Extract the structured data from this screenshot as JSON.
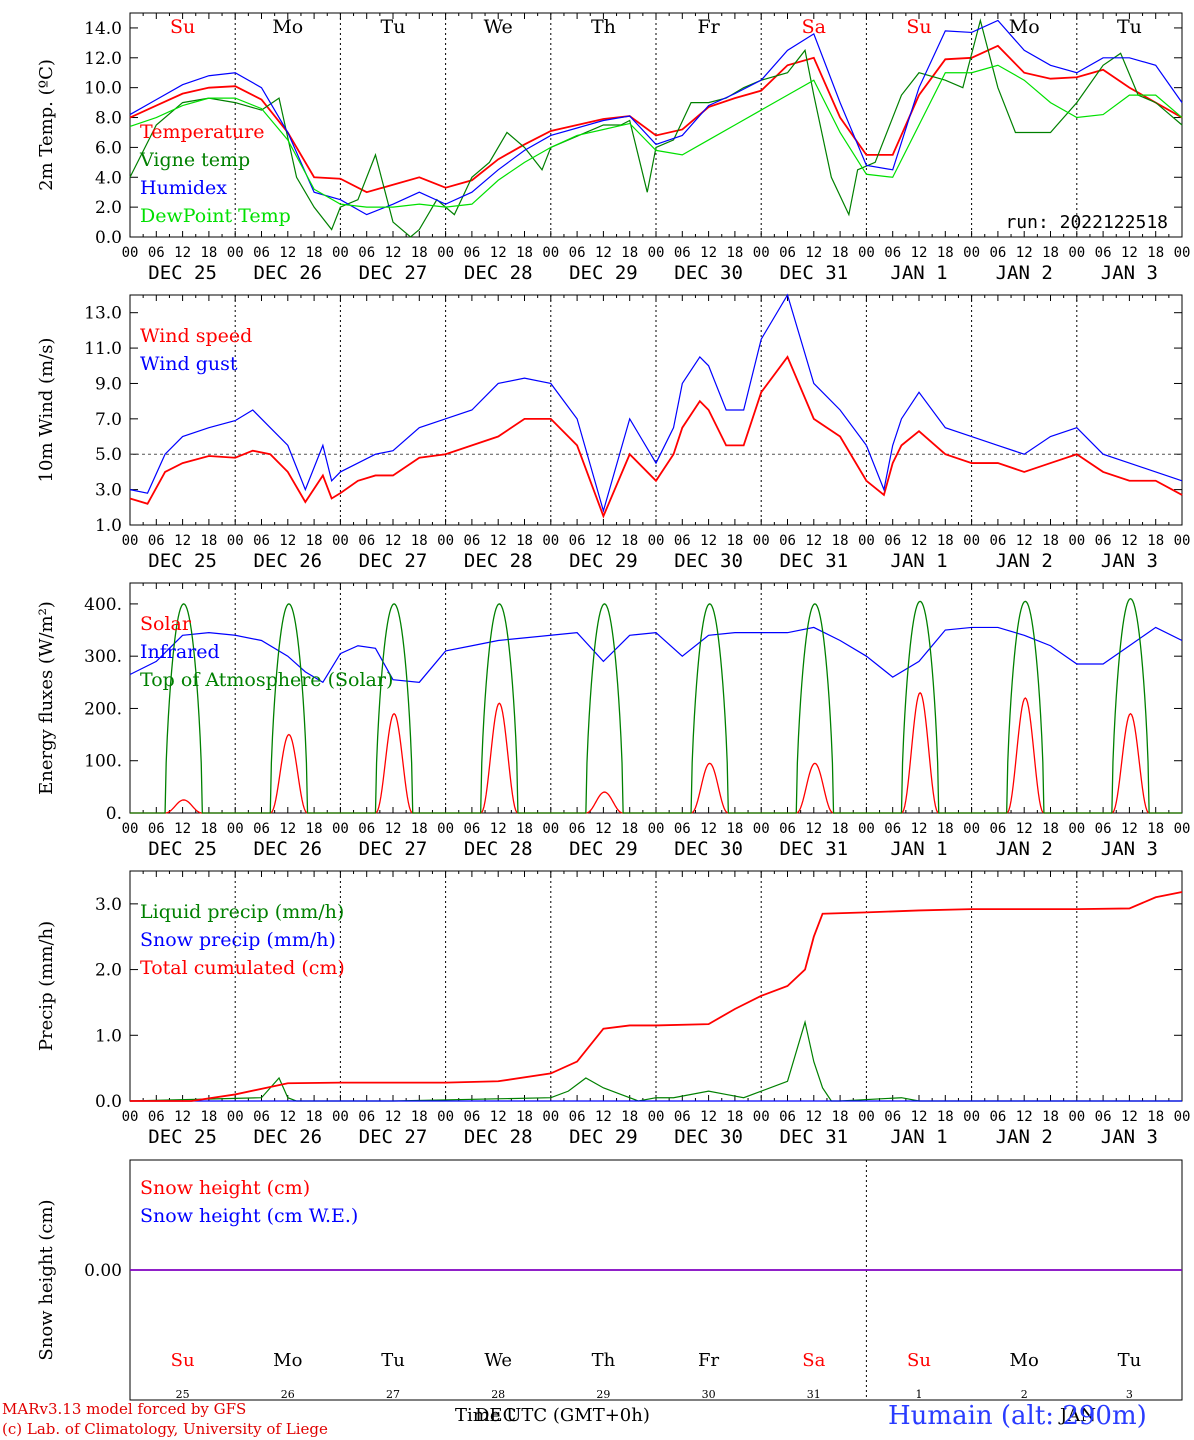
{
  "colors": {
    "red": "#ff0000",
    "green": "#008000",
    "blue": "#0000ff",
    "lightgreen": "#00e000",
    "purple": "#8000c0",
    "name_blue": "#3040ff"
  },
  "days_header": [
    "Su",
    "Mo",
    "Tu",
    "We",
    "Th",
    "Fr",
    "Sa",
    "Su",
    "Mo",
    "Tu"
  ],
  "weekend_days": [
    0,
    6,
    7
  ],
  "hour_labels": [
    "00",
    "06",
    "12",
    "18"
  ],
  "date_labels": [
    "DEC 25",
    "DEC 26",
    "DEC 27",
    "DEC 28",
    "DEC 29",
    "DEC 30",
    "DEC 31",
    "JAN  1",
    "JAN  2",
    "JAN  3"
  ],
  "day_numbers": [
    "25",
    "26",
    "27",
    "28",
    "29",
    "30",
    "31",
    "1",
    "2",
    "3"
  ],
  "run_label": "run: 2022122518",
  "footer": {
    "model": "MARv3.13 model forced by GFS",
    "lab": "(c) Lab. of Climatology, University of Liege",
    "xlabel": "Time UTC (GMT+0h)",
    "month_dec": "DEC",
    "month_jan": "JAN",
    "station": "Humain (alt: 290m)"
  },
  "chart_data": [
    {
      "type": "line",
      "ylabel": "2m Temp. (ºC)",
      "ylim": [
        0,
        15
      ],
      "yticks": [
        "0.0",
        "2.0",
        "4.0",
        "6.0",
        "8.0",
        "10.0",
        "12.0",
        "14.0"
      ],
      "x_unit": "hours since DEC 25 00 UTC",
      "series": [
        {
          "name": "Temperature",
          "color": "red",
          "x": [
            0,
            6,
            12,
            18,
            24,
            30,
            36,
            42,
            48,
            54,
            60,
            66,
            72,
            78,
            84,
            90,
            96,
            102,
            108,
            114,
            120,
            126,
            132,
            138,
            144,
            150,
            156,
            162,
            168,
            174,
            180,
            186,
            192,
            198,
            204,
            210,
            216,
            222,
            228,
            234,
            240
          ],
          "y": [
            8.0,
            8.8,
            9.6,
            10.0,
            10.1,
            9.2,
            7.0,
            4.0,
            3.9,
            3.0,
            3.5,
            4.0,
            3.3,
            3.8,
            5.2,
            6.2,
            7.1,
            7.5,
            7.9,
            8.1,
            6.8,
            7.2,
            8.7,
            9.3,
            9.8,
            11.5,
            12.0,
            8.0,
            5.5,
            5.5,
            9.5,
            11.9,
            12.0,
            12.8,
            11.0,
            10.6,
            10.7,
            11.2,
            10.0,
            9.0,
            8.0
          ]
        },
        {
          "name": "Vigne temp",
          "color": "green",
          "x": [
            0,
            6,
            12,
            18,
            24,
            30,
            34,
            38,
            42,
            46,
            48,
            52,
            56,
            60,
            64,
            66,
            70,
            74,
            78,
            82,
            86,
            90,
            94,
            96,
            100,
            104,
            108,
            112,
            114,
            118,
            120,
            124,
            128,
            132,
            136,
            140,
            144,
            150,
            154,
            156,
            160,
            164,
            166,
            170,
            174,
            176,
            180,
            186,
            190,
            194,
            198,
            202,
            206,
            210,
            216,
            222,
            226,
            230,
            234,
            240
          ],
          "y": [
            4.0,
            7.5,
            9.0,
            9.3,
            9.0,
            8.5,
            9.3,
            4.0,
            2.0,
            0.5,
            2.0,
            2.5,
            5.5,
            1.0,
            0.0,
            0.5,
            2.5,
            1.5,
            4.0,
            5.0,
            7.0,
            6.0,
            4.5,
            6.0,
            6.5,
            7.0,
            7.5,
            7.5,
            7.8,
            3.0,
            6.0,
            6.5,
            9.0,
            9.0,
            9.3,
            10.0,
            10.5,
            11.0,
            12.5,
            9.5,
            4.0,
            1.5,
            4.5,
            5.0,
            8.0,
            9.5,
            11.0,
            10.5,
            10.0,
            14.5,
            10.0,
            7.0,
            7.0,
            7.0,
            9.0,
            11.5,
            12.3,
            9.5,
            9.0,
            7.5
          ]
        },
        {
          "name": "Humidex",
          "color": "blue",
          "x": [
            0,
            6,
            12,
            18,
            24,
            30,
            36,
            42,
            48,
            54,
            60,
            66,
            72,
            78,
            84,
            90,
            96,
            102,
            108,
            114,
            120,
            126,
            132,
            138,
            144,
            150,
            156,
            162,
            168,
            174,
            180,
            186,
            192,
            198,
            204,
            210,
            216,
            222,
            228,
            234,
            240
          ],
          "y": [
            8.2,
            9.2,
            10.2,
            10.8,
            11.0,
            10.0,
            7.0,
            3.0,
            2.5,
            1.5,
            2.2,
            3.0,
            2.2,
            3.0,
            4.5,
            5.8,
            6.8,
            7.3,
            7.8,
            8.1,
            6.2,
            6.8,
            8.8,
            9.6,
            10.5,
            12.5,
            13.6,
            9.0,
            4.8,
            4.5,
            10.0,
            13.8,
            13.7,
            14.5,
            12.5,
            11.5,
            11.0,
            12.0,
            12.0,
            11.5,
            9.0
          ]
        },
        {
          "name": "DewPoint Temp",
          "color": "lightgreen",
          "x": [
            0,
            6,
            12,
            18,
            24,
            30,
            36,
            42,
            48,
            54,
            60,
            66,
            72,
            78,
            84,
            90,
            96,
            102,
            108,
            114,
            120,
            126,
            132,
            138,
            144,
            150,
            156,
            162,
            168,
            174,
            180,
            186,
            192,
            198,
            204,
            210,
            216,
            222,
            228,
            234,
            240
          ],
          "y": [
            7.4,
            8.0,
            8.8,
            9.3,
            9.3,
            8.6,
            6.5,
            3.2,
            2.2,
            2.0,
            2.0,
            2.2,
            2.0,
            2.2,
            3.8,
            5.0,
            6.0,
            6.8,
            7.2,
            7.6,
            5.8,
            5.5,
            6.5,
            7.5,
            8.5,
            9.5,
            10.5,
            7.0,
            4.2,
            4.0,
            7.5,
            11.0,
            11.0,
            11.5,
            10.5,
            9.0,
            8.0,
            8.2,
            9.5,
            9.5,
            8.0
          ]
        }
      ]
    },
    {
      "type": "line",
      "ylabel": "10m Wind (m/s)",
      "ylim": [
        1,
        14
      ],
      "yticks": [
        "1.0",
        "3.0",
        "5.0",
        "7.0",
        "9.0",
        "11.0",
        "13.0"
      ],
      "reference_line": 5.0,
      "series": [
        {
          "name": "Wind speed",
          "color": "red",
          "x": [
            0,
            4,
            8,
            12,
            18,
            24,
            28,
            32,
            36,
            40,
            44,
            46,
            48,
            52,
            56,
            60,
            66,
            72,
            78,
            84,
            90,
            96,
            102,
            108,
            114,
            120,
            124,
            126,
            130,
            132,
            136,
            140,
            144,
            150,
            156,
            162,
            168,
            172,
            174,
            176,
            180,
            186,
            192,
            198,
            204,
            210,
            216,
            222,
            228,
            234,
            240
          ],
          "y": [
            2.5,
            2.2,
            4.0,
            4.5,
            4.9,
            4.8,
            5.2,
            5.0,
            4.0,
            2.3,
            3.8,
            2.5,
            2.8,
            3.5,
            3.8,
            3.8,
            4.8,
            5.0,
            5.5,
            6.0,
            7.0,
            7.0,
            5.5,
            1.5,
            5.0,
            3.5,
            5.0,
            6.5,
            8.0,
            7.5,
            5.5,
            5.5,
            8.5,
            10.5,
            7.0,
            6.0,
            3.5,
            2.7,
            4.5,
            5.5,
            6.3,
            5.0,
            4.5,
            4.5,
            4.0,
            4.5,
            5.0,
            4.0,
            3.5,
            3.5,
            2.7
          ]
        },
        {
          "name": "Wind gust",
          "color": "blue",
          "x": [
            0,
            4,
            8,
            12,
            18,
            24,
            28,
            32,
            36,
            40,
            44,
            46,
            48,
            52,
            56,
            60,
            66,
            72,
            78,
            84,
            90,
            96,
            102,
            108,
            114,
            120,
            124,
            126,
            130,
            132,
            136,
            140,
            144,
            150,
            156,
            162,
            168,
            172,
            174,
            176,
            180,
            186,
            192,
            198,
            204,
            210,
            216,
            222,
            228,
            234,
            240
          ],
          "y": [
            3.0,
            2.8,
            5.0,
            6.0,
            6.5,
            6.9,
            7.5,
            6.5,
            5.5,
            3.0,
            5.5,
            3.5,
            4.0,
            4.5,
            5.0,
            5.2,
            6.5,
            7.0,
            7.5,
            9.0,
            9.3,
            9.0,
            7.0,
            1.8,
            7.0,
            4.5,
            6.5,
            9.0,
            10.5,
            10.0,
            7.5,
            7.5,
            11.5,
            14.0,
            9.0,
            7.5,
            5.5,
            3.0,
            5.5,
            7.0,
            8.5,
            6.5,
            6.0,
            5.5,
            5.0,
            6.0,
            6.5,
            5.0,
            4.5,
            4.0,
            3.5
          ]
        }
      ]
    },
    {
      "type": "line",
      "ylabel": "Energy fluxes (W/m²)",
      "ylim": [
        0,
        440
      ],
      "yticks": [
        "0.",
        "100.",
        "200.",
        "300.",
        "400."
      ],
      "series": [
        {
          "name": "Solar",
          "color": "red",
          "days_peak": [
            25,
            150,
            190,
            210,
            40,
            95,
            95,
            230,
            220,
            190
          ]
        },
        {
          "name": "Infrared",
          "color": "blue",
          "x": [
            0,
            6,
            12,
            18,
            24,
            30,
            36,
            40,
            44,
            48,
            52,
            56,
            60,
            66,
            72,
            78,
            84,
            90,
            96,
            102,
            108,
            114,
            120,
            126,
            132,
            138,
            144,
            150,
            156,
            162,
            168,
            174,
            180,
            186,
            192,
            198,
            204,
            210,
            216,
            222,
            228,
            234,
            240
          ],
          "y": [
            265,
            290,
            340,
            345,
            340,
            330,
            300,
            270,
            250,
            305,
            320,
            315,
            255,
            250,
            310,
            320,
            330,
            335,
            340,
            345,
            290,
            340,
            345,
            300,
            340,
            345,
            345,
            345,
            355,
            330,
            300,
            260,
            290,
            350,
            355,
            355,
            340,
            320,
            285,
            285,
            320,
            355,
            330
          ]
        },
        {
          "name": "Top of Atmosphere (Solar)",
          "color": "green",
          "days_peak": [
            400,
            400,
            400,
            400,
            400,
            400,
            400,
            405,
            405,
            410
          ]
        }
      ]
    },
    {
      "type": "line",
      "ylabel": "Precip (mm/h)",
      "ylim": [
        0,
        3.5
      ],
      "yticks": [
        "0.0",
        "1.0",
        "2.0",
        "3.0"
      ],
      "series": [
        {
          "name": "Liquid precip (mm/h)",
          "color": "green",
          "x": [
            0,
            30,
            34,
            36,
            38,
            60,
            96,
            100,
            104,
            108,
            112,
            116,
            120,
            124,
            132,
            136,
            140,
            150,
            154,
            156,
            158,
            160,
            162,
            176,
            180,
            240
          ],
          "y": [
            0,
            0.05,
            0.35,
            0.05,
            0,
            0,
            0.05,
            0.15,
            0.35,
            0.2,
            0.1,
            0,
            0.05,
            0.05,
            0.15,
            0.1,
            0.05,
            0.3,
            1.2,
            0.6,
            0.2,
            0,
            0,
            0.05,
            0,
            0
          ]
        },
        {
          "name": "Snow precip (mm/h)",
          "color": "blue",
          "x": [
            0,
            240
          ],
          "y": [
            0,
            0
          ]
        },
        {
          "name": "Total cumulated (cm)",
          "color": "red",
          "x": [
            0,
            14,
            24,
            36,
            48,
            60,
            72,
            84,
            96,
            102,
            108,
            114,
            120,
            132,
            138,
            144,
            150,
            154,
            156,
            158,
            168,
            180,
            192,
            216,
            228,
            234,
            240
          ],
          "y": [
            0,
            0,
            0.1,
            0.27,
            0.28,
            0.28,
            0.28,
            0.3,
            0.42,
            0.6,
            1.1,
            1.15,
            1.15,
            1.17,
            1.4,
            1.6,
            1.75,
            2.0,
            2.5,
            2.85,
            2.87,
            2.9,
            2.92,
            2.92,
            2.93,
            3.1,
            3.18
          ]
        }
      ]
    },
    {
      "type": "line",
      "ylabel": "Snow height (cm)",
      "yticks": [
        "0.00"
      ],
      "series": [
        {
          "name": "Snow height (cm)",
          "color": "red",
          "x": [
            0,
            240
          ],
          "y": [
            0,
            0
          ]
        },
        {
          "name": "Snow height (cm W.E.)",
          "color": "blue",
          "x": [
            0,
            240
          ],
          "y": [
            0,
            0
          ]
        }
      ]
    }
  ]
}
